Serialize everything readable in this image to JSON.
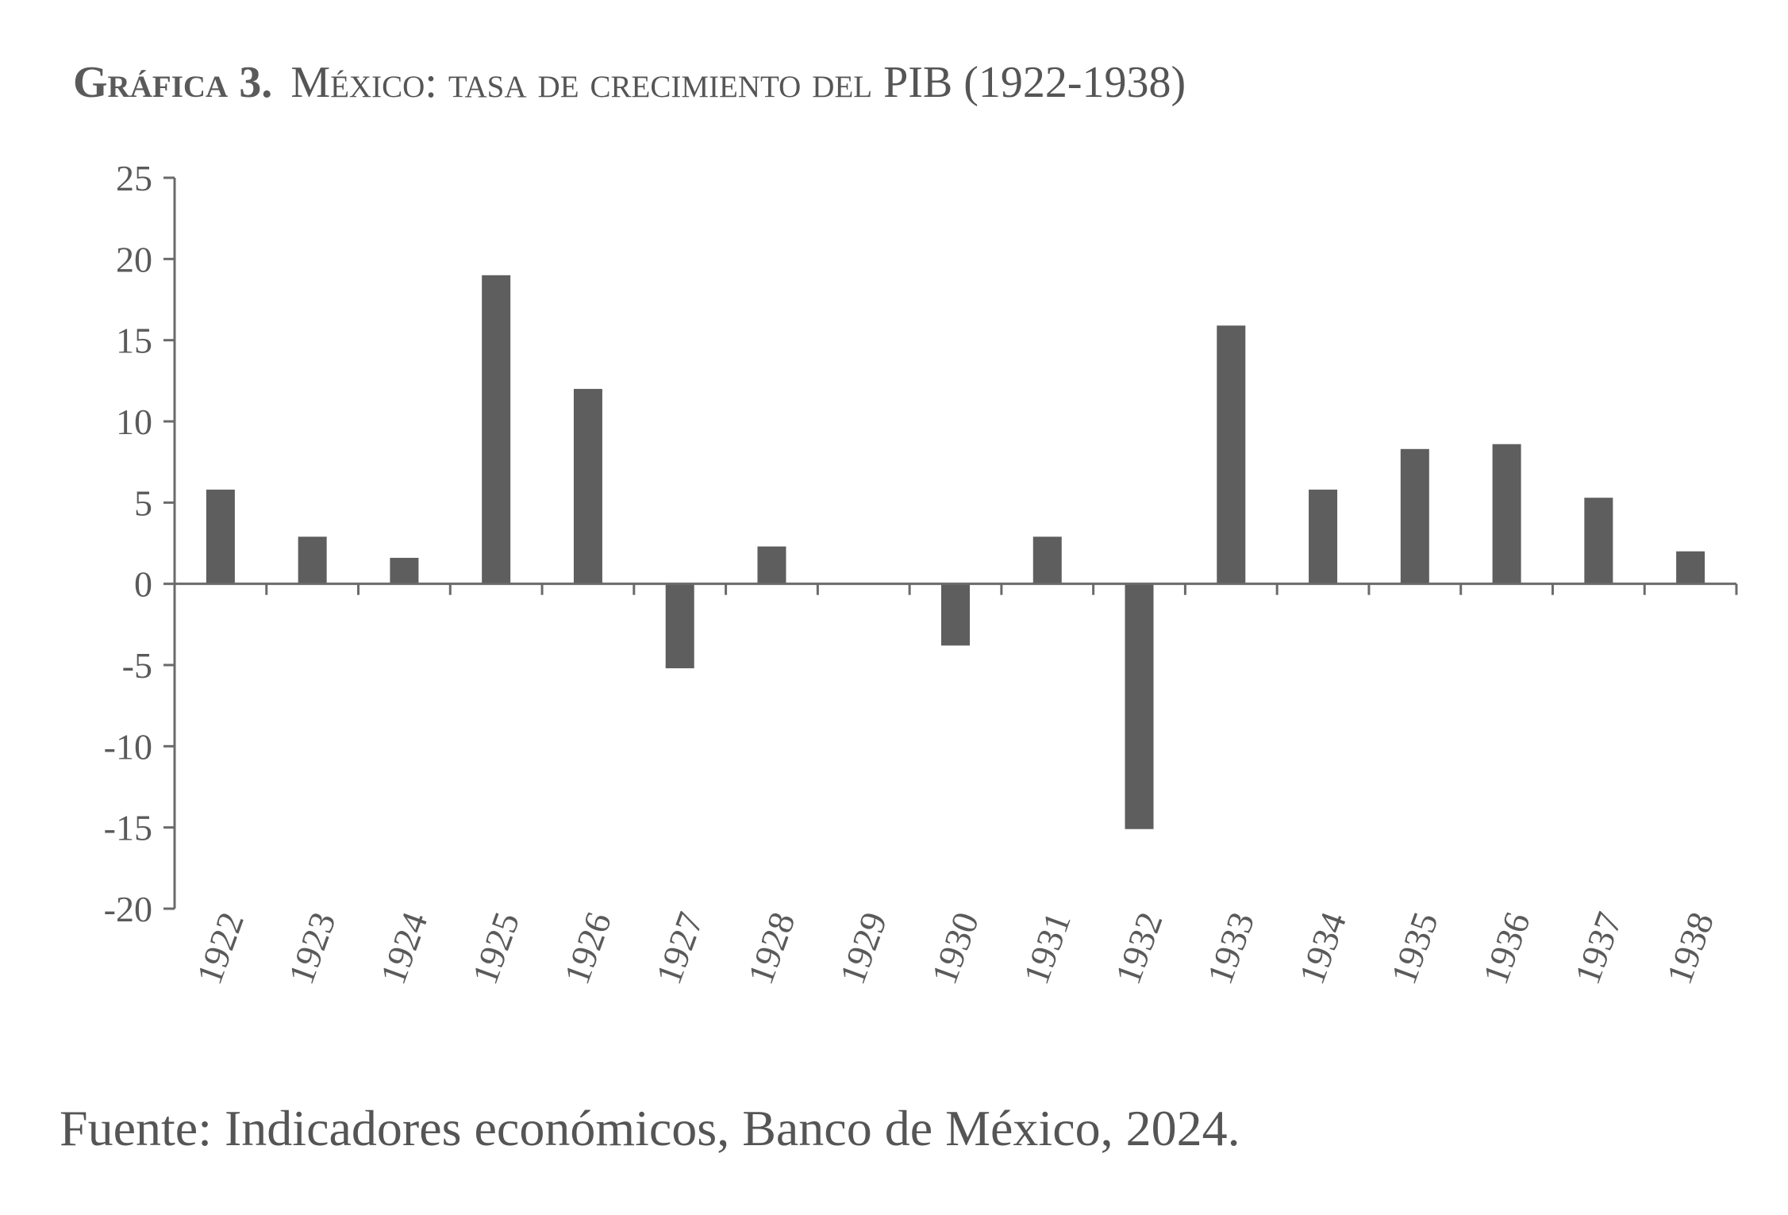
{
  "figure": {
    "label": "Gráfica 3.",
    "title": "México: tasa de crecimiento del PIB (1922-1938)",
    "source": "Fuente: Indicadores económicos, Banco de México, 2024."
  },
  "chart_data": {
    "type": "bar",
    "title": "México: tasa de crecimiento del PIB (1922-1938)",
    "xlabel": "",
    "ylabel": "",
    "categories": [
      "1922",
      "1923",
      "1924",
      "1925",
      "1926",
      "1927",
      "1928",
      "1929",
      "1930",
      "1931",
      "1932",
      "1933",
      "1934",
      "1935",
      "1936",
      "1937",
      "1938"
    ],
    "values": [
      5.8,
      2.9,
      1.6,
      19.0,
      12.0,
      -5.2,
      2.3,
      0.0,
      -3.8,
      2.9,
      -15.1,
      15.9,
      5.8,
      8.3,
      8.6,
      5.3,
      2.0
    ],
    "yticks": [
      25,
      20,
      15,
      10,
      5,
      0,
      -5,
      -10,
      -15,
      -20
    ],
    "ylim": [
      -20,
      25
    ],
    "grid": false,
    "legend": "none",
    "bar_color": "#5e5e5e"
  }
}
